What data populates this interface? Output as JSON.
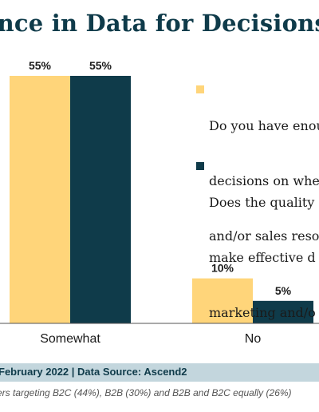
{
  "header": {
    "title": "ence in Data for Decisions"
  },
  "legend": [
    {
      "color": "#ffd57a",
      "lines": [
        "Do you have enou",
        "decisions on whe",
        "and/or sales reso"
      ]
    },
    {
      "color": "#0f3b4a",
      "lines": [
        "Does the quality",
        "make effective d",
        "marketing and/o"
      ]
    }
  ],
  "chart_data": {
    "type": "bar",
    "categories": [
      "Somewhat",
      "No"
    ],
    "series": [
      {
        "values": [
          55,
          10
        ],
        "labels": [
          "55%",
          "10%"
        ],
        "color": "#ffd57a"
      },
      {
        "values": [
          55,
          5
        ],
        "labels": [
          "55%",
          "5%"
        ],
        "color": "#0f3b4a"
      }
    ],
    "ylim": [
      0,
      60
    ]
  },
  "footer": {
    "source": "February 2022 | Data Source: Ascend2",
    "note": "ers targeting B2C (44%), B2B (30%) and B2B and B2C equally (26%)"
  }
}
